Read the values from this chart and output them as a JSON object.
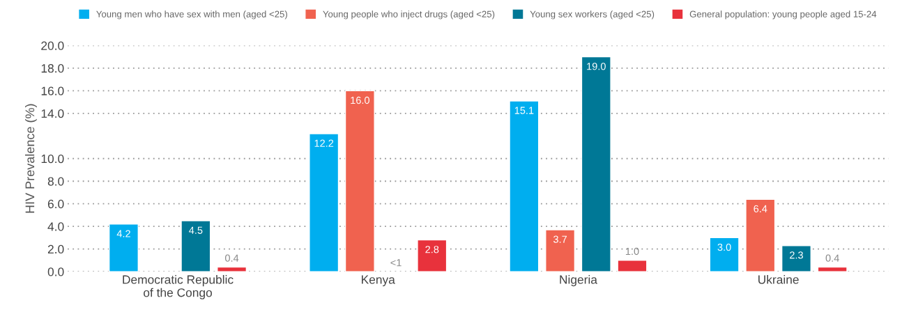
{
  "chart_data": {
    "type": "bar",
    "ylabel": "HIV Prevalence (%)",
    "categories": [
      "Democratic Republic\nof the Congo",
      "Kenya",
      "Nigeria",
      "Ukraine"
    ],
    "series": [
      {
        "name": "Young men who have sex with men (aged <25)",
        "color": "#00aeef",
        "values": [
          4.2,
          12.2,
          15.1,
          3.0
        ],
        "value_labels": [
          "4.2",
          "12.2",
          "15.1",
          "3.0"
        ]
      },
      {
        "name": "Young people who inject drugs (aged <25)",
        "color": "#f0624f",
        "values": [
          null,
          16.0,
          3.7,
          6.4
        ],
        "value_labels": [
          null,
          "16.0",
          "3.7",
          "6.4"
        ]
      },
      {
        "name": "Young sex workers (aged <25)",
        "color": "#007896",
        "values": [
          4.5,
          null,
          19.0,
          2.3
        ],
        "value_labels": [
          "4.5",
          "<1",
          "19.0",
          "2.3"
        ]
      },
      {
        "name": "General population: young people aged 15-24",
        "color": "#e8323c",
        "values": [
          0.4,
          2.8,
          1.0,
          0.4
        ],
        "value_labels": [
          "0.4",
          "2.8",
          "1.0",
          "0.4"
        ]
      }
    ],
    "ylim": [
      0,
      20
    ],
    "yticks": [
      {
        "value": 0,
        "label": "0.0"
      },
      {
        "value": 2,
        "label": "2.0"
      },
      {
        "value": 4,
        "label": "4.0"
      },
      {
        "value": 6,
        "label": "6.0"
      },
      {
        "value": 8,
        "label": "8.0"
      },
      {
        "value": 10,
        "label": "10.0"
      },
      {
        "value": 14,
        "label": "14.0"
      },
      {
        "value": 16,
        "label": "16.0"
      },
      {
        "value": 18,
        "label": "18.0"
      },
      {
        "value": 20,
        "label": "20.0"
      }
    ],
    "grid": "y",
    "legend": "top"
  }
}
